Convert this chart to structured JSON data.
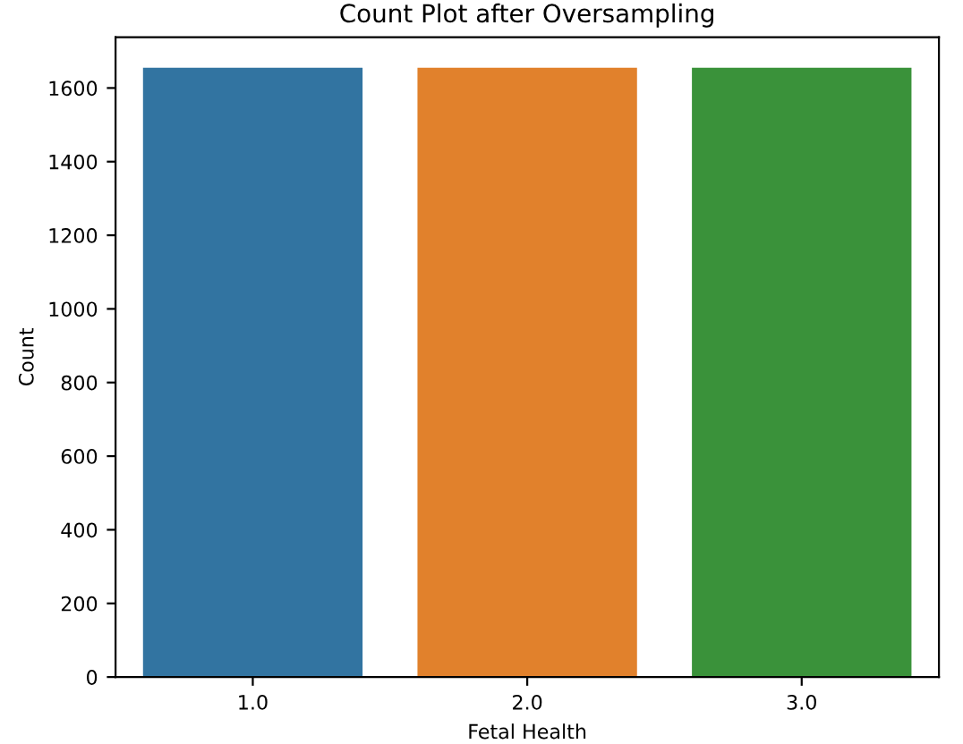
{
  "chart_data": {
    "type": "bar",
    "title": "Count Plot after Oversampling",
    "xlabel": "Fetal Health",
    "ylabel": "Count",
    "categories": [
      "1.0",
      "2.0",
      "3.0"
    ],
    "values": [
      1655,
      1655,
      1655
    ],
    "colors": [
      "#3274a1",
      "#e1812c",
      "#3a923a"
    ],
    "ylim": [
      0,
      1738
    ],
    "yticks": [
      0,
      200,
      400,
      600,
      800,
      1000,
      1200,
      1400,
      1600
    ],
    "grid": false
  }
}
